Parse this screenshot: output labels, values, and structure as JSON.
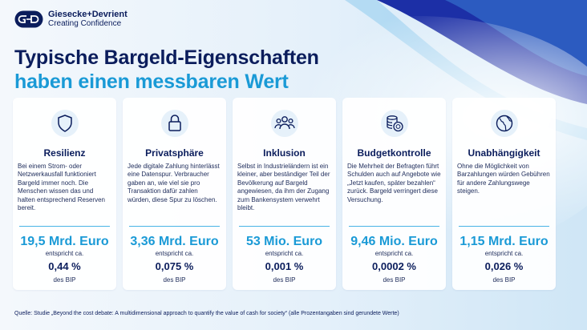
{
  "brand": {
    "name": "Giesecke+Devrient",
    "tagline": "Creating Confidence"
  },
  "headline": {
    "line1": "Typische Bargeld-Eigenschaften",
    "line2": "haben einen messbaren Wert"
  },
  "cards": [
    {
      "icon": "shield-icon",
      "title": "Resilienz",
      "body": "Bei einem Strom- oder Netzwerkausfall funktioniert Bargeld immer noch. Die Menschen wissen das und halten entsprechend Reserven bereit.",
      "amount": "19,5 Mrd. Euro",
      "equiv": "entspricht ca.",
      "percent": "0,44 %",
      "percent_label": "des BIP"
    },
    {
      "icon": "padlock-icon",
      "title": "Privatsphäre",
      "body": "Jede digitale Zahlung hinterlässt eine Datenspur. Verbraucher gaben an, wie viel sie pro Transaktion dafür zahlen würden, diese Spur zu löschen.",
      "amount": "3,36 Mrd. Euro",
      "equiv": "entspricht ca.",
      "percent": "0,075 %",
      "percent_label": "des BIP"
    },
    {
      "icon": "people-group-icon",
      "title": "Inklusion",
      "body": "Selbst in Industrieländern ist ein kleiner, aber beständiger Teil der Bevölkerung auf Bargeld angewiesen, da ihm der Zugang zum Bankensystem verwehrt bleibt.",
      "amount": "53 Mio. Euro",
      "equiv": "entspricht ca.",
      "percent": "0,001 %",
      "percent_label": "des BIP"
    },
    {
      "icon": "coin-stack-icon",
      "title": "Budgetkontrolle",
      "body": "Die Mehrheit der Befragten führt Schulden auch auf Angebote wie „Jetzt kaufen, später bezahlen“ zurück. Bargeld verringert diese Versuchung.",
      "amount": "9,46 Mio. Euro",
      "equiv": "entspricht ca.",
      "percent": "0,0002 %",
      "percent_label": "des BIP"
    },
    {
      "icon": "globe-icon",
      "title": "Unabhängigkeit",
      "body": "Ohne die Möglichkeit von Barzahlungen würden Gebühren für andere Zahlungswege steigen.",
      "amount": "1,15 Mrd. Euro",
      "equiv": "entspricht ca.",
      "percent": "0,026 %",
      "percent_label": "des BIP"
    }
  ],
  "footer": "Quelle: Studie „Beyond the cost debate: A multidimensional approach to quantify the value of cash for society“ (alle Prozentangaben sind gerundete Werte)",
  "colors": {
    "navy": "#0b1d5c",
    "accent_blue": "#1a9ad6",
    "deep_blue": "#1c2fa6"
  }
}
